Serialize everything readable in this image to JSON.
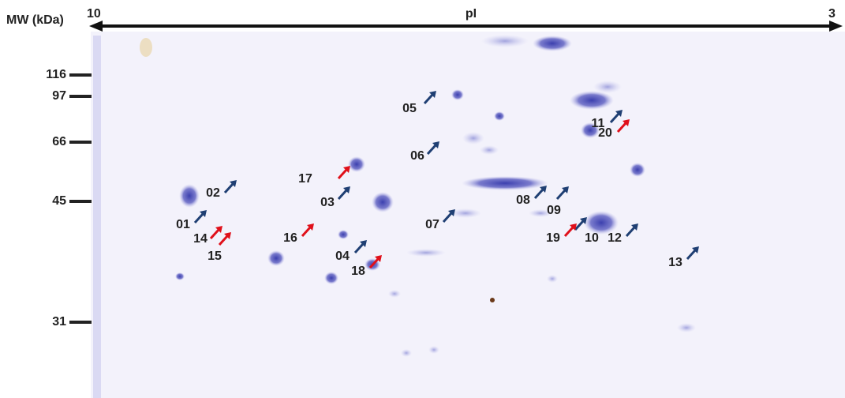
{
  "header": {
    "mw_label": "MW (kDa)",
    "pi_left": "10",
    "pi_label": "pI",
    "pi_right": "3"
  },
  "mw_markers": [
    "116",
    "97",
    "66",
    "45",
    "31"
  ],
  "spots": [
    {
      "label": "01",
      "color": "#1f3f73"
    },
    {
      "label": "02",
      "color": "#1f3f73"
    },
    {
      "label": "03",
      "color": "#1f3f73"
    },
    {
      "label": "04",
      "color": "#1f3f73"
    },
    {
      "label": "05",
      "color": "#1f3f73"
    },
    {
      "label": "06",
      "color": "#1f3f73"
    },
    {
      "label": "07",
      "color": "#1f3f73"
    },
    {
      "label": "08",
      "color": "#1f3f73"
    },
    {
      "label": "09",
      "color": "#1f3f73"
    },
    {
      "label": "10",
      "color": "#1f3f73"
    },
    {
      "label": "11",
      "color": "#1f3f73"
    },
    {
      "label": "12",
      "color": "#1f3f73"
    },
    {
      "label": "13",
      "color": "#1f3f73"
    },
    {
      "label": "14",
      "color": "#e0101a"
    },
    {
      "label": "15",
      "color": "#e0101a"
    },
    {
      "label": "16",
      "color": "#e0101a"
    },
    {
      "label": "17",
      "color": "#e0101a"
    },
    {
      "label": "18",
      "color": "#e0101a"
    },
    {
      "label": "19",
      "color": "#e0101a"
    },
    {
      "label": "20",
      "color": "#e0101a"
    }
  ]
}
